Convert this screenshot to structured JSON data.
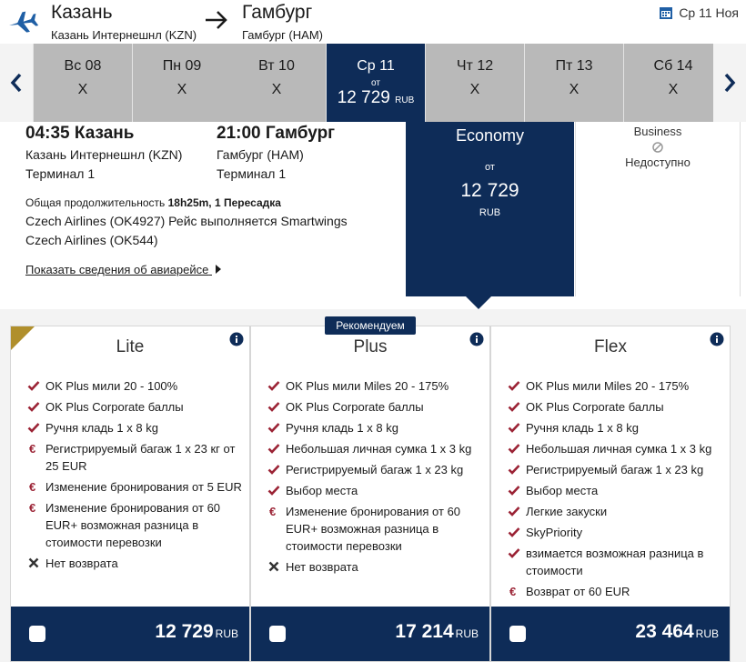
{
  "route": {
    "origin_city": "Казань",
    "origin_airport": "Казань Интернешнл (KZN)",
    "dest_city": "Гамбург",
    "dest_airport": "Гамбург (HAM)",
    "date": "Ср 11 Ноя"
  },
  "dates": [
    {
      "label": "Вс 08",
      "price": "X"
    },
    {
      "label": "Пн 09",
      "price": "X"
    },
    {
      "label": "Вт 10",
      "price": "X"
    },
    {
      "label": "Ср 11",
      "ot": "от",
      "price": "12 729",
      "currency": "RUB"
    },
    {
      "label": "Чт 12",
      "price": "X"
    },
    {
      "label": "Пт 13",
      "price": "X"
    },
    {
      "label": "Сб 14",
      "price": "X"
    }
  ],
  "flight": {
    "dep_time_city": "04:35 Казань",
    "dep_airport": "Казань Интернешнл (KZN)",
    "dep_terminal": "Терминал 1",
    "arr_time_city": "21:00 Гамбург",
    "arr_airport": "Гамбург (HAM)",
    "arr_terminal": "Терминал 1",
    "duration_label": "Общая продолжительность",
    "duration_value": "18h25m, 1 Пересадка",
    "segment1": "Czech Airlines (OK4927) Рейс выполняется Smartwings",
    "segment2": "Czech Airlines (OK544)",
    "details_link": "Показать сведения об авиарейсе"
  },
  "cabins": {
    "economy": {
      "name": "Economy",
      "ot": "от",
      "price": "12 729",
      "currency": "RUB"
    },
    "business": {
      "name": "Business",
      "status": "Недоступно"
    }
  },
  "recommended_badge": "Рекомендуем",
  "fares": [
    {
      "name": "Lite",
      "features": [
        {
          "icon": "check",
          "text": "OK Plus мили 20 - 100%"
        },
        {
          "icon": "check",
          "text": "OK Plus Corporate баллы"
        },
        {
          "icon": "check",
          "text": "Ручня кладь 1 x 8 kg"
        },
        {
          "icon": "euro",
          "text": "Регистрируемый багаж 1 x 23 кг от ",
          "bold": "25 EUR"
        },
        {
          "icon": "euro",
          "text": "Изменение бронирования от ",
          "bold": "5 EUR"
        },
        {
          "icon": "euro",
          "text": "Изменение бронирования от ",
          "bold": "60 EUR+",
          "text2": " возможная разница в стоимости перевозки"
        },
        {
          "icon": "cross",
          "text": "Нет возврата"
        }
      ],
      "price": "12 729",
      "currency": "RUB"
    },
    {
      "name": "Plus",
      "features": [
        {
          "icon": "check",
          "text": "OK Plus мили Miles 20 - 175%"
        },
        {
          "icon": "check",
          "text": "OK Plus Corporate баллы"
        },
        {
          "icon": "check",
          "text": "Ручня кладь 1 x 8 kg"
        },
        {
          "icon": "check",
          "text": "Небольшая личная сумка 1 x 3 kg"
        },
        {
          "icon": "check",
          "text": "Регистрируемый багаж 1 x 23 kg"
        },
        {
          "icon": "check",
          "text": "Выбор места"
        },
        {
          "icon": "euro",
          "text": "Изменение бронирования от ",
          "bold": "60 EUR+",
          "text2": " возможная разница в стоимости перевозки"
        },
        {
          "icon": "cross",
          "text": "Нет возврата"
        }
      ],
      "price": "17 214",
      "currency": "RUB"
    },
    {
      "name": "Flex",
      "features": [
        {
          "icon": "check",
          "text": "OK Plus мили Miles 20 - 175%"
        },
        {
          "icon": "check",
          "text": "OK Plus Corporate баллы"
        },
        {
          "icon": "check",
          "text": "Ручня кладь 1 x 8 kg"
        },
        {
          "icon": "check",
          "text": "Небольшая личная сумка 1 x 3 kg"
        },
        {
          "icon": "check",
          "text": "Регистрируемый багаж 1 x 23 kg"
        },
        {
          "icon": "check",
          "text": "Выбор места"
        },
        {
          "icon": "check",
          "text": "Легкие закуски"
        },
        {
          "icon": "check",
          "text": "SkyPriority"
        },
        {
          "icon": "check",
          "text": "взимается возможная разница в стоимости"
        },
        {
          "icon": "euro",
          "text": "Возврат от ",
          "bold": "60 EUR"
        }
      ],
      "price": "23 464",
      "currency": "RUB"
    }
  ],
  "colors": {
    "navy": "#0e2c58",
    "check_red": "#9b2335",
    "gold": "#b08f2c"
  }
}
